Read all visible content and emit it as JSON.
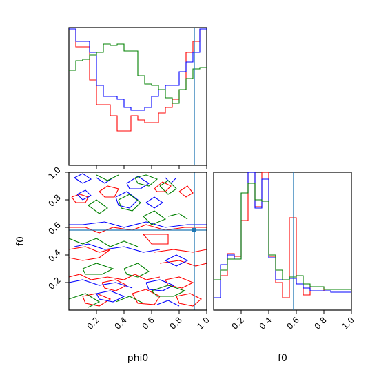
{
  "chart_data": {
    "type": "corner",
    "parameters": [
      "phi0",
      "f0"
    ],
    "truth": {
      "phi0": 0.91,
      "f0": 0.58
    },
    "series": [
      {
        "name": "",
        "color": "#ff0000"
      },
      {
        "name": "",
        "color": "#0000ff"
      },
      {
        "name": "",
        "color": "#008000"
      }
    ],
    "hist_phi0": {
      "bins": 20,
      "range": [
        0,
        1
      ],
      "ylim": [
        0,
        1
      ],
      "red": [
        0.99,
        0.86,
        0.86,
        0.62,
        0.44,
        0.44,
        0.36,
        0.25,
        0.25,
        0.36,
        0.33,
        0.31,
        0.31,
        0.38,
        0.42,
        0.48,
        0.55,
        0.82,
        0.9,
        0.99
      ],
      "blue": [
        0.99,
        0.9,
        0.9,
        0.82,
        0.58,
        0.5,
        0.5,
        0.48,
        0.42,
        0.4,
        0.4,
        0.42,
        0.5,
        0.55,
        0.58,
        0.58,
        0.68,
        0.75,
        0.82,
        0.99
      ],
      "green": [
        0.69,
        0.76,
        0.77,
        0.8,
        0.82,
        0.88,
        0.87,
        0.88,
        0.83,
        0.83,
        0.65,
        0.59,
        0.58,
        0.55,
        0.49,
        0.45,
        0.55,
        0.63,
        0.7,
        0.71
      ]
    },
    "hist_f0": {
      "bins": 20,
      "range": [
        0,
        1
      ],
      "ylim": [
        0,
        1
      ],
      "red": [
        0.22,
        0.25,
        0.41,
        0.39,
        0.65,
        1.0,
        0.75,
        1.0,
        0.39,
        0.2,
        0.09,
        0.67,
        0.19,
        0.11,
        0.17,
        0.17,
        0.14,
        0.13,
        0.13,
        0.13
      ],
      "blue": [
        0.09,
        0.33,
        0.4,
        0.37,
        0.85,
        1.0,
        0.74,
        0.95,
        0.38,
        0.22,
        0.22,
        0.23,
        0.19,
        0.16,
        0.14,
        0.14,
        0.14,
        0.13,
        0.13,
        0.13
      ],
      "green": [
        0.22,
        0.29,
        0.37,
        0.37,
        0.85,
        0.92,
        0.8,
        0.79,
        0.4,
        0.29,
        0.22,
        0.24,
        0.25,
        0.19,
        0.17,
        0.17,
        0.15,
        0.15,
        0.15,
        0.15
      ]
    },
    "contour_2d": {
      "xlabel": "phi0",
      "ylabel": "f0",
      "xlim": [
        0,
        1
      ],
      "ylim": [
        0,
        1
      ],
      "red": [
        [
          [
            0.02,
            0.82
          ],
          [
            0.08,
            0.84
          ],
          [
            0.14,
            0.82
          ],
          [
            0.12,
            0.78
          ],
          [
            0.05,
            0.78
          ],
          [
            0.02,
            0.82
          ]
        ],
        [
          [
            0.22,
            0.86
          ],
          [
            0.28,
            0.9
          ],
          [
            0.36,
            0.88
          ],
          [
            0.33,
            0.82
          ],
          [
            0.26,
            0.82
          ],
          [
            0.22,
            0.86
          ]
        ],
        [
          [
            0.62,
            0.88
          ],
          [
            0.68,
            0.93
          ],
          [
            0.74,
            0.9
          ],
          [
            0.7,
            0.86
          ],
          [
            0.64,
            0.86
          ],
          [
            0.62,
            0.88
          ]
        ],
        [
          [
            0.8,
            0.86
          ],
          [
            0.86,
            0.9
          ],
          [
            0.9,
            0.85
          ],
          [
            0.85,
            0.82
          ],
          [
            0.8,
            0.86
          ]
        ],
        [
          [
            0.0,
            0.6
          ],
          [
            0.12,
            0.6
          ],
          [
            0.22,
            0.56
          ],
          [
            0.32,
            0.6
          ],
          [
            0.46,
            0.58
          ],
          [
            0.56,
            0.62
          ],
          [
            0.7,
            0.58
          ],
          [
            0.84,
            0.6
          ],
          [
            1.0,
            0.6
          ]
        ],
        [
          [
            0.54,
            0.55
          ],
          [
            0.72,
            0.55
          ],
          [
            0.72,
            0.48
          ],
          [
            0.6,
            0.48
          ],
          [
            0.54,
            0.55
          ]
        ],
        [
          [
            0.0,
            0.44
          ],
          [
            0.12,
            0.46
          ],
          [
            0.22,
            0.42
          ],
          [
            0.3,
            0.44
          ],
          [
            0.22,
            0.38
          ],
          [
            0.1,
            0.36
          ],
          [
            0.0,
            0.38
          ]
        ],
        [
          [
            0.62,
            0.42
          ],
          [
            0.76,
            0.44
          ],
          [
            0.9,
            0.42
          ],
          [
            1.0,
            0.44
          ]
        ],
        [
          [
            0.66,
            0.34
          ],
          [
            0.8,
            0.36
          ],
          [
            0.92,
            0.32
          ],
          [
            1.0,
            0.34
          ]
        ],
        [
          [
            0.0,
            0.24
          ],
          [
            0.08,
            0.26
          ],
          [
            0.16,
            0.22
          ],
          [
            0.28,
            0.24
          ],
          [
            0.4,
            0.22
          ],
          [
            0.48,
            0.26
          ],
          [
            0.56,
            0.22
          ],
          [
            0.66,
            0.24
          ]
        ],
        [
          [
            0.24,
            0.2
          ],
          [
            0.34,
            0.22
          ],
          [
            0.42,
            0.18
          ],
          [
            0.34,
            0.14
          ],
          [
            0.26,
            0.16
          ],
          [
            0.24,
            0.2
          ]
        ],
        [
          [
            0.7,
            0.22
          ],
          [
            0.8,
            0.24
          ],
          [
            0.9,
            0.2
          ],
          [
            0.82,
            0.16
          ],
          [
            0.72,
            0.18
          ],
          [
            0.7,
            0.22
          ]
        ],
        [
          [
            0.1,
            0.1
          ],
          [
            0.2,
            0.12
          ],
          [
            0.3,
            0.08
          ],
          [
            0.22,
            0.03
          ],
          [
            0.12,
            0.05
          ],
          [
            0.1,
            0.1
          ]
        ],
        [
          [
            0.46,
            0.12
          ],
          [
            0.56,
            0.15
          ],
          [
            0.66,
            0.1
          ],
          [
            0.62,
            0.04
          ],
          [
            0.5,
            0.05
          ],
          [
            0.46,
            0.12
          ]
        ],
        [
          [
            0.78,
            0.1
          ],
          [
            0.88,
            0.12
          ],
          [
            0.96,
            0.08
          ],
          [
            0.9,
            0.03
          ],
          [
            0.8,
            0.05
          ],
          [
            0.78,
            0.1
          ]
        ]
      ],
      "blue": [
        [
          [
            0.04,
            0.96
          ],
          [
            0.1,
            0.99
          ],
          [
            0.16,
            0.95
          ],
          [
            0.1,
            0.92
          ],
          [
            0.04,
            0.96
          ]
        ],
        [
          [
            0.2,
            0.96
          ],
          [
            0.26,
            0.92
          ],
          [
            0.32,
            0.96
          ]
        ],
        [
          [
            0.42,
            0.92
          ],
          [
            0.5,
            0.97
          ],
          [
            0.58,
            0.92
          ],
          [
            0.52,
            0.88
          ],
          [
            0.44,
            0.88
          ],
          [
            0.42,
            0.92
          ]
        ],
        [
          [
            0.7,
            0.96
          ],
          [
            0.74,
            0.92
          ],
          [
            0.78,
            0.96
          ]
        ],
        [
          [
            0.06,
            0.84
          ],
          [
            0.12,
            0.87
          ],
          [
            0.16,
            0.83
          ],
          [
            0.1,
            0.8
          ],
          [
            0.06,
            0.84
          ]
        ],
        [
          [
            0.34,
            0.82
          ],
          [
            0.42,
            0.86
          ],
          [
            0.5,
            0.8
          ],
          [
            0.44,
            0.74
          ],
          [
            0.36,
            0.76
          ],
          [
            0.34,
            0.82
          ]
        ],
        [
          [
            0.56,
            0.78
          ],
          [
            0.62,
            0.82
          ],
          [
            0.68,
            0.78
          ],
          [
            0.62,
            0.74
          ],
          [
            0.56,
            0.78
          ]
        ],
        [
          [
            0.0,
            0.62
          ],
          [
            0.1,
            0.62
          ],
          [
            0.26,
            0.64
          ],
          [
            0.4,
            0.6
          ],
          [
            0.56,
            0.64
          ],
          [
            0.7,
            0.6
          ],
          [
            0.86,
            0.62
          ],
          [
            1.0,
            0.62
          ]
        ],
        [
          [
            0.04,
            0.46
          ],
          [
            0.14,
            0.48
          ],
          [
            0.26,
            0.44
          ],
          [
            0.4,
            0.46
          ],
          [
            0.54,
            0.42
          ],
          [
            0.66,
            0.44
          ]
        ],
        [
          [
            0.7,
            0.36
          ],
          [
            0.78,
            0.4
          ],
          [
            0.86,
            0.36
          ],
          [
            0.78,
            0.32
          ],
          [
            0.7,
            0.36
          ]
        ],
        [
          [
            0.0,
            0.2
          ],
          [
            0.1,
            0.22
          ],
          [
            0.22,
            0.18
          ],
          [
            0.34,
            0.2
          ],
          [
            0.46,
            0.16
          ]
        ],
        [
          [
            0.2,
            0.12
          ],
          [
            0.3,
            0.14
          ],
          [
            0.4,
            0.1
          ],
          [
            0.32,
            0.06
          ],
          [
            0.22,
            0.08
          ],
          [
            0.2,
            0.12
          ]
        ],
        [
          [
            0.56,
            0.2
          ],
          [
            0.66,
            0.22
          ],
          [
            0.76,
            0.18
          ],
          [
            0.68,
            0.14
          ],
          [
            0.58,
            0.15
          ],
          [
            0.56,
            0.2
          ]
        ],
        [
          [
            0.64,
            0.04
          ],
          [
            0.72,
            0.07
          ],
          [
            0.8,
            0.03
          ]
        ]
      ],
      "green": [
        [
          [
            0.2,
            0.98
          ],
          [
            0.28,
            0.94
          ],
          [
            0.36,
            0.98
          ]
        ],
        [
          [
            0.48,
            0.96
          ],
          [
            0.56,
            0.98
          ],
          [
            0.64,
            0.95
          ],
          [
            0.58,
            0.9
          ],
          [
            0.5,
            0.92
          ],
          [
            0.48,
            0.96
          ]
        ],
        [
          [
            0.66,
            0.9
          ],
          [
            0.72,
            0.94
          ],
          [
            0.78,
            0.88
          ],
          [
            0.72,
            0.84
          ],
          [
            0.66,
            0.9
          ]
        ],
        [
          [
            0.14,
            0.76
          ],
          [
            0.2,
            0.8
          ],
          [
            0.28,
            0.74
          ],
          [
            0.22,
            0.7
          ],
          [
            0.14,
            0.76
          ]
        ],
        [
          [
            0.36,
            0.8
          ],
          [
            0.44,
            0.84
          ],
          [
            0.52,
            0.78
          ],
          [
            0.46,
            0.72
          ],
          [
            0.38,
            0.74
          ],
          [
            0.36,
            0.8
          ]
        ],
        [
          [
            0.54,
            0.68
          ],
          [
            0.62,
            0.72
          ],
          [
            0.7,
            0.66
          ],
          [
            0.6,
            0.62
          ],
          [
            0.54,
            0.68
          ]
        ],
        [
          [
            0.72,
            0.68
          ],
          [
            0.8,
            0.7
          ],
          [
            0.86,
            0.66
          ]
        ],
        [
          [
            0.0,
            0.52
          ],
          [
            0.1,
            0.48
          ],
          [
            0.2,
            0.52
          ],
          [
            0.3,
            0.46
          ],
          [
            0.4,
            0.5
          ],
          [
            0.5,
            0.46
          ]
        ],
        [
          [
            0.1,
            0.3
          ],
          [
            0.2,
            0.34
          ],
          [
            0.32,
            0.3
          ],
          [
            0.24,
            0.26
          ],
          [
            0.12,
            0.26
          ],
          [
            0.1,
            0.3
          ]
        ],
        [
          [
            0.4,
            0.3
          ],
          [
            0.5,
            0.34
          ],
          [
            0.58,
            0.28
          ],
          [
            0.5,
            0.24
          ],
          [
            0.42,
            0.26
          ],
          [
            0.4,
            0.3
          ]
        ],
        [
          [
            0.6,
            0.14
          ],
          [
            0.72,
            0.18
          ],
          [
            0.84,
            0.14
          ],
          [
            0.76,
            0.1
          ],
          [
            0.64,
            0.1
          ],
          [
            0.6,
            0.14
          ]
        ],
        [
          [
            0.0,
            0.08
          ],
          [
            0.12,
            0.12
          ],
          [
            0.22,
            0.06
          ],
          [
            0.14,
            0.02
          ]
        ],
        [
          [
            0.34,
            0.06
          ],
          [
            0.44,
            0.1
          ],
          [
            0.54,
            0.05
          ]
        ]
      ]
    },
    "xticks": [
      "0.2",
      "0.4",
      "0.6",
      "0.8",
      "1.0"
    ],
    "yticks": [
      "0.2",
      "0.4",
      "0.6",
      "0.8",
      "1.0"
    ],
    "xlabels": [
      "phi0",
      "f0"
    ],
    "ylabel": "f0"
  }
}
